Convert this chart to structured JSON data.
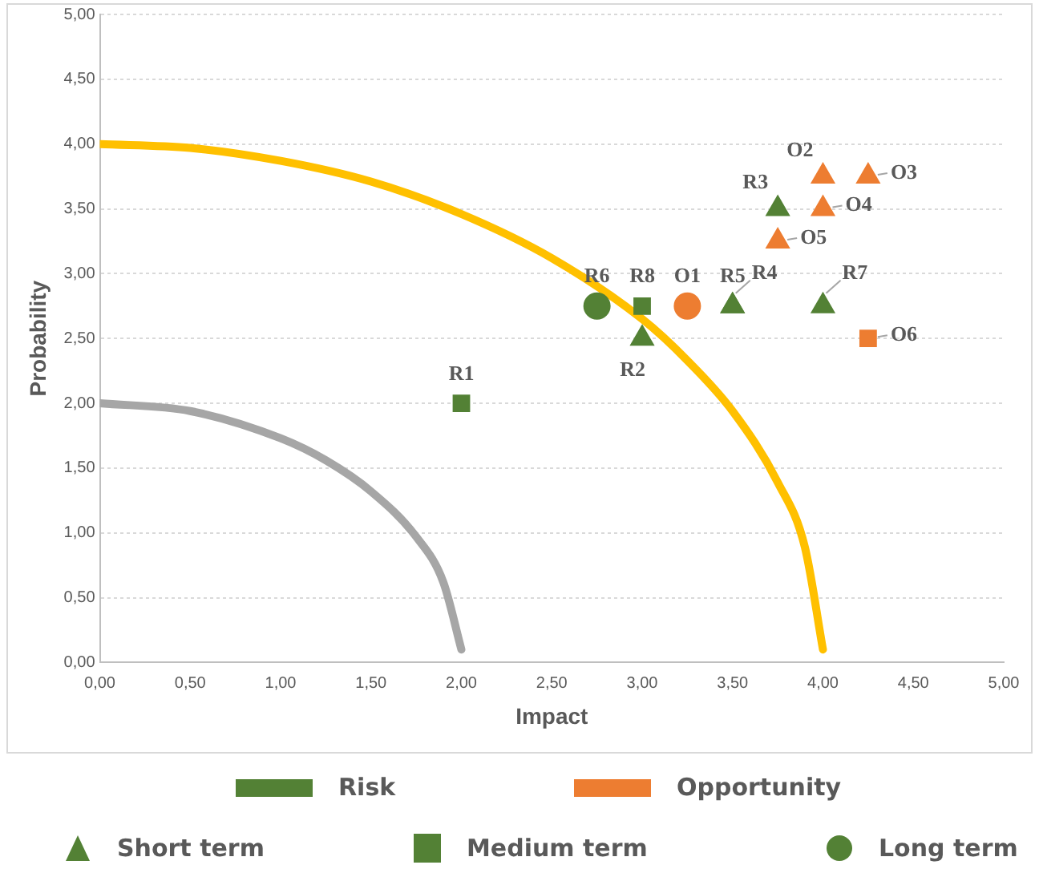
{
  "chart_data": {
    "type": "scatter",
    "xlabel": "Impact",
    "ylabel": "Probability",
    "xlim": [
      0,
      5
    ],
    "ylim": [
      0,
      5
    ],
    "xticks": [
      {
        "value": 0,
        "label": "0,00"
      },
      {
        "value": 0.5,
        "label": "0,50"
      },
      {
        "value": 1,
        "label": "1,00"
      },
      {
        "value": 1.5,
        "label": "1,50"
      },
      {
        "value": 2,
        "label": "2,00"
      },
      {
        "value": 2.5,
        "label": "2,50"
      },
      {
        "value": 3,
        "label": "3,00"
      },
      {
        "value": 3.5,
        "label": "3,50"
      },
      {
        "value": 4,
        "label": "4,00"
      },
      {
        "value": 4.5,
        "label": "4,50"
      },
      {
        "value": 5,
        "label": "5,00"
      }
    ],
    "yticks": [
      {
        "value": 0,
        "label": "0,00"
      },
      {
        "value": 0.5,
        "label": "0,50"
      },
      {
        "value": 1,
        "label": "1,00"
      },
      {
        "value": 1.5,
        "label": "1,50"
      },
      {
        "value": 2,
        "label": "2,00"
      },
      {
        "value": 2.5,
        "label": "2,50"
      },
      {
        "value": 3,
        "label": "3,00"
      },
      {
        "value": 3.5,
        "label": "3,50"
      },
      {
        "value": 4,
        "label": "4,00"
      },
      {
        "value": 4.5,
        "label": "4,50"
      },
      {
        "value": 5,
        "label": "5,00"
      }
    ],
    "grid": "y",
    "annotations": [
      "Risk",
      "Opportunity",
      "Short term",
      "Medium term",
      "Long term"
    ],
    "series": [
      {
        "type": "line",
        "color": "#a6a6a6",
        "marker": "none",
        "x": [
          0,
          0.5,
          1,
          1.25,
          1.5,
          1.75,
          1.9,
          2
        ],
        "values": [
          2,
          1.94,
          1.73,
          1.56,
          1.32,
          0.97,
          0.62,
          0.1
        ]
      },
      {
        "type": "line",
        "color": "#ffc000",
        "marker": "none",
        "x": [
          0,
          0.5,
          1,
          1.5,
          2,
          2.5,
          3,
          3.25,
          3.5,
          3.75,
          3.9,
          4
        ],
        "values": [
          4,
          3.97,
          3.87,
          3.71,
          3.46,
          3.12,
          2.65,
          2.33,
          1.94,
          1.39,
          0.89,
          0.1
        ]
      },
      {
        "color": "#538135",
        "marker": "triangle",
        "x": [
          3,
          3.75,
          3.5,
          3.5,
          4
        ],
        "values": [
          2.5,
          3.5,
          2.75,
          2.75,
          2.75
        ],
        "value_labels": [
          "R2",
          "R3",
          "R4",
          "R5",
          "R7"
        ]
      },
      {
        "color": "#538135",
        "marker": "square",
        "x": [
          2,
          3
        ],
        "values": [
          2,
          2.75
        ],
        "value_labels": [
          "R1",
          "R8"
        ]
      },
      {
        "color": "#538135",
        "marker": "circle",
        "x": [
          2.75
        ],
        "values": [
          2.75
        ],
        "value_labels": [
          "R6"
        ]
      },
      {
        "color": "#ed7d31",
        "marker": "triangle",
        "x": [
          4,
          4.25,
          4,
          3.75
        ],
        "values": [
          3.75,
          3.75,
          3.5,
          3.25
        ],
        "value_labels": [
          "O2",
          "O3",
          "O4",
          "O5"
        ]
      },
      {
        "color": "#ed7d31",
        "marker": "square",
        "x": [
          4.25
        ],
        "values": [
          2.5
        ],
        "value_labels": [
          "O6"
        ]
      },
      {
        "color": "#ed7d31",
        "marker": "circle",
        "x": [
          3.25
        ],
        "values": [
          2.75
        ],
        "value_labels": [
          "O1"
        ]
      }
    ]
  }
}
